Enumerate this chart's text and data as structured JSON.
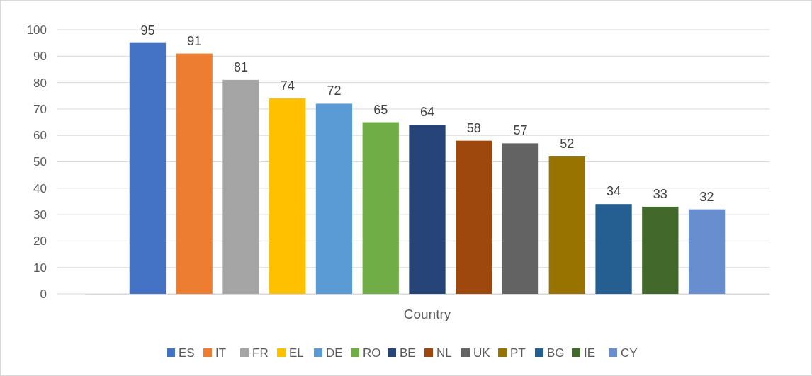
{
  "chart_data": {
    "type": "bar",
    "categories": [
      "Country"
    ],
    "series": [
      {
        "name": "ES",
        "color": "#4472c4",
        "values": [
          95
        ]
      },
      {
        "name": "IT",
        "color": "#ed7d31",
        "values": [
          91
        ]
      },
      {
        "name": "FR",
        "color": "#a5a5a5",
        "values": [
          81
        ]
      },
      {
        "name": "EL",
        "color": "#ffc000",
        "values": [
          74
        ]
      },
      {
        "name": "DE",
        "color": "#5b9bd5",
        "values": [
          72
        ]
      },
      {
        "name": "RO",
        "color": "#70ad47",
        "values": [
          65
        ]
      },
      {
        "name": "BE",
        "color": "#264478",
        "values": [
          64
        ]
      },
      {
        "name": "NL",
        "color": "#9e480e",
        "values": [
          58
        ]
      },
      {
        "name": "UK",
        "color": "#636363",
        "values": [
          57
        ]
      },
      {
        "name": "PT",
        "color": "#997300",
        "values": [
          52
        ]
      },
      {
        "name": "BG",
        "color": "#255e91",
        "values": [
          34
        ]
      },
      {
        "name": "IE",
        "color": "#43682b",
        "values": [
          33
        ]
      },
      {
        "name": "CY",
        "color": "#698ed0",
        "values": [
          32
        ]
      }
    ],
    "ylim": [
      0,
      100
    ],
    "yticks": [
      0,
      10,
      20,
      30,
      40,
      50,
      60,
      70,
      80,
      90,
      100
    ],
    "grid": "y",
    "legend": "bottom",
    "data_labels": true
  }
}
